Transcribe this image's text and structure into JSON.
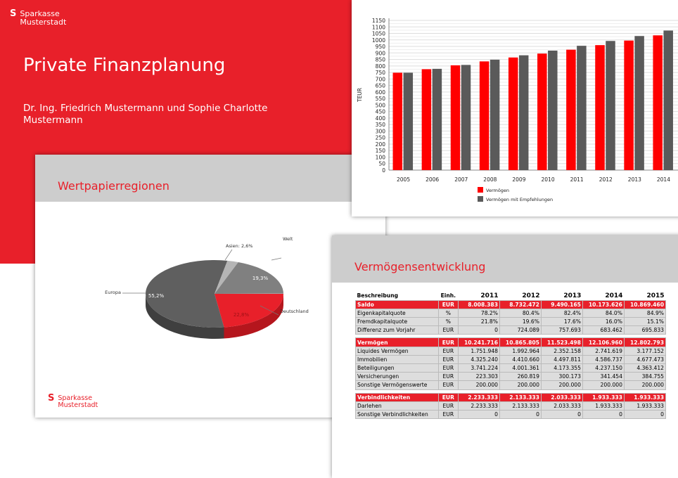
{
  "brand": {
    "name_line1": "Sparkasse",
    "name_line2": "Musterstadt",
    "logo_glyph": "S",
    "red": "#e8202a"
  },
  "title_slide": {
    "title": "Private Finanzplanung",
    "subtitle": "Dr. Ing. Friedrich Mustermann und Sophie Charlotte Mustermann"
  },
  "pie_slide": {
    "title": "Wertpapierregionen"
  },
  "table_slide": {
    "title": "Vermögensentwicklung",
    "headers": [
      "Beschreibung",
      "Einh.",
      "2011",
      "2012",
      "2013",
      "2014",
      "2015"
    ],
    "groups": [
      {
        "rows": [
          {
            "sum": true,
            "cells": [
              "Saldo",
              "EUR",
              "8.008.383",
              "8.732.472",
              "9.490.165",
              "10.173.626",
              "10.869.460"
            ]
          },
          {
            "cells": [
              "Eigenkapitalquote",
              "%",
              "78.2%",
              "80.4%",
              "82.4%",
              "84.0%",
              "84.9%"
            ]
          },
          {
            "cells": [
              "Fremdkapitalquote",
              "%",
              "21.8%",
              "19.6%",
              "17.6%",
              "16.0%",
              "15.1%"
            ]
          },
          {
            "cells": [
              "Differenz zum Vorjahr",
              "EUR",
              "0",
              "724.089",
              "757.693",
              "683.462",
              "695.833"
            ]
          }
        ]
      },
      {
        "rows": [
          {
            "sum": true,
            "cells": [
              "Vermögen",
              "EUR",
              "10.241.716",
              "10.865.805",
              "11.523.498",
              "12.106.960",
              "12.802.793"
            ]
          },
          {
            "cells": [
              "Liquides Vermögen",
              "EUR",
              "1.751.948",
              "1.992.964",
              "2.352.158",
              "2.741.619",
              "3.177.152"
            ]
          },
          {
            "cells": [
              "Immobilien",
              "EUR",
              "4.325.240",
              "4.410.660",
              "4.497.811",
              "4.586.737",
              "4.677.473"
            ]
          },
          {
            "cells": [
              "Beteiligungen",
              "EUR",
              "3.741.224",
              "4.001.361",
              "4.173.355",
              "4.237.150",
              "4.363.412"
            ]
          },
          {
            "cells": [
              "Versicherungen",
              "EUR",
              "223.303",
              "260.819",
              "300.173",
              "341.454",
              "384.755"
            ]
          },
          {
            "cells": [
              "Sonstige Vermögenswerte",
              "EUR",
              "200.000",
              "200.000",
              "200.000",
              "200.000",
              "200.000"
            ]
          }
        ]
      },
      {
        "rows": [
          {
            "sum": true,
            "cells": [
              "Verbindlichkeiten",
              "EUR",
              "2.233.333",
              "2.133.333",
              "2.033.333",
              "1.933.333",
              "1.933.333"
            ]
          },
          {
            "cells": [
              "Darlehen",
              "EUR",
              "2.233.333",
              "2.133.333",
              "2.033.333",
              "1.933.333",
              "1.933.333"
            ]
          },
          {
            "cells": [
              "Sonstige Verbindlichkeiten",
              "EUR",
              "0",
              "0",
              "0",
              "0",
              "0"
            ]
          }
        ]
      }
    ]
  },
  "chart_data": [
    {
      "type": "bar",
      "ylabel": "TEUR",
      "xlabel": "",
      "ylim": [
        0,
        1150
      ],
      "ytick_step": 50,
      "grid": true,
      "legend": "bottom",
      "categories": [
        "2005",
        "2006",
        "2007",
        "2008",
        "2009",
        "2010",
        "2011",
        "2012",
        "2013",
        "2014"
      ],
      "series": [
        {
          "name": "Vermögen",
          "color": "#ff0000",
          "values": [
            748,
            775,
            805,
            835,
            865,
            895,
            925,
            960,
            995,
            1035
          ]
        },
        {
          "name": "Vermögen mit Empfehlungen",
          "color": "#5a5a5a",
          "values": [
            748,
            778,
            808,
            848,
            882,
            918,
            955,
            992,
            1030,
            1072
          ]
        }
      ]
    },
    {
      "type": "pie",
      "style": "3d",
      "slices": [
        {
          "label": "Deutschland",
          "value_label": "22,8%",
          "value": 22.8,
          "color": "#e8202a"
        },
        {
          "label": "Europa",
          "value_label": "55,2%",
          "value": 55.2,
          "color": "#5f5f5f"
        },
        {
          "label": "Asien",
          "value_label": "2,6%",
          "value": 2.6,
          "color": "#b5b5b5"
        },
        {
          "label": "Welt",
          "value_label": "19,3%",
          "value": 19.3,
          "color": "#808080"
        }
      ]
    }
  ]
}
